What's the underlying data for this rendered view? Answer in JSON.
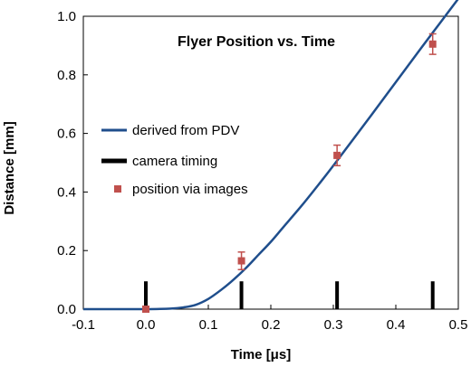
{
  "chart_data": {
    "type": "scatter",
    "title": "Flyer Position vs. Time",
    "xlabel": "Time  [μs]",
    "ylabel": "Distance  [mm]",
    "xlim": [
      -0.1,
      0.5
    ],
    "ylim": [
      0.0,
      1.0
    ],
    "xticks": [
      "-0.1",
      "0.0",
      "0.1",
      "0.2",
      "0.3",
      "0.4",
      "0.5"
    ],
    "yticks": [
      "0.0",
      "0.2",
      "0.4",
      "0.6",
      "0.8",
      "1.0"
    ],
    "grid": false,
    "legend_position": "left-middle",
    "series": [
      {
        "name": "derived from PDV",
        "kind": "line",
        "color": "#1f4e8c",
        "x": [
          -0.1,
          -0.05,
          0.0,
          0.04,
          0.06,
          0.08,
          0.1,
          0.12,
          0.14,
          0.16,
          0.18,
          0.2,
          0.22,
          0.25,
          0.28,
          0.3,
          0.33,
          0.36,
          0.4,
          0.44,
          0.47,
          0.5
        ],
        "y": [
          0.0,
          0.0,
          0.0,
          0.002,
          0.006,
          0.015,
          0.035,
          0.065,
          0.1,
          0.14,
          0.185,
          0.23,
          0.28,
          0.355,
          0.435,
          0.49,
          0.575,
          0.66,
          0.775,
          0.89,
          0.975,
          1.06
        ]
      },
      {
        "name": "camera timing",
        "kind": "markers",
        "color": "#000000",
        "x": [
          0.0,
          0.153,
          0.306,
          0.459
        ],
        "y": [
          0.0,
          0.0,
          0.0,
          0.0
        ]
      },
      {
        "name": "position via images",
        "kind": "scatter",
        "color": "#c0504d",
        "x": [
          0.0,
          0.153,
          0.306,
          0.459
        ],
        "y": [
          0.0,
          0.165,
          0.525,
          0.905
        ],
        "error": [
          0.0,
          0.03,
          0.035,
          0.035
        ]
      }
    ]
  }
}
